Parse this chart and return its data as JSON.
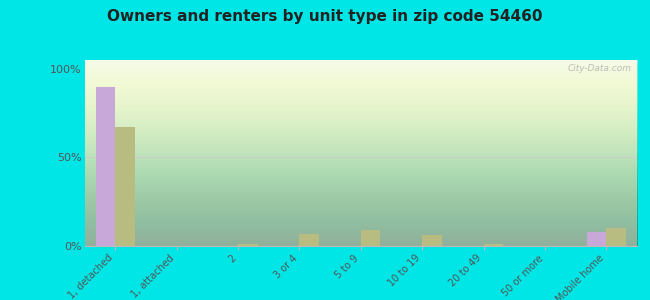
{
  "title": "Owners and renters by unit type in zip code 54460",
  "categories": [
    "1, detached",
    "1, attached",
    "2",
    "3 or 4",
    "5 to 9",
    "10 to 19",
    "20 to 49",
    "50 or more",
    "Mobile home"
  ],
  "owner_values": [
    90,
    0,
    0,
    0,
    0,
    0,
    0,
    0,
    8
  ],
  "renter_values": [
    67,
    0,
    1,
    7,
    9,
    6,
    1,
    0,
    10
  ],
  "owner_color": "#c8a8d8",
  "renter_color": "#b8bc80",
  "background_color": "#00e5e5",
  "yticks": [
    0,
    50,
    100
  ],
  "ylim": [
    0,
    105
  ],
  "watermark": "City-Data.com",
  "bar_width": 0.32
}
